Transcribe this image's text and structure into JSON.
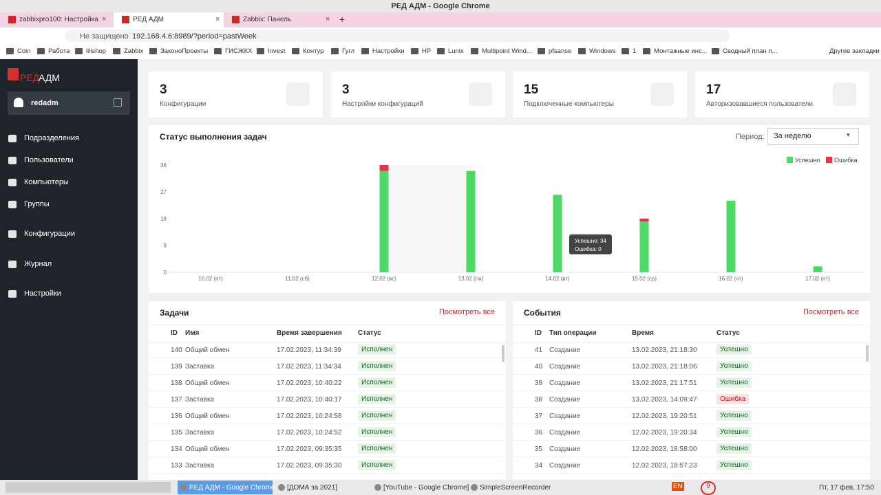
{
  "browser": {
    "window_title": "РЕД АДМ - Google Chrome",
    "tabs": [
      "zabbixpro100: Настройка уз...",
      "РЕД АДМ",
      "Zabbix: Панель"
    ],
    "url_warning": "Не защищено",
    "url": "192.168.4.6:8989/?period=pastWeek",
    "bookmarks": [
      "Coin",
      "Работа",
      "lilishop",
      "Zabbix",
      "ЗаконоПроекты",
      "ГИСЖКХ",
      "Invest",
      "Контур",
      "Гугл",
      "Настройки",
      "HP",
      "Lunix",
      "Multipoint Wind...",
      "pfsanse",
      "Windows",
      "1",
      "Монтажные инс...",
      "Сводный план п..."
    ],
    "other_bookmarks": "Другие закладки"
  },
  "app": {
    "logo_accent": "РЕД",
    "logo_rest": "АДМ",
    "user": "redadm",
    "nav": [
      "Подразделения",
      "Пользователи",
      "Компьютеры",
      "Группы",
      "Конфигурации",
      "Журнал",
      "Настройки"
    ],
    "stats": [
      {
        "value": "3",
        "label": "Конфигурации"
      },
      {
        "value": "3",
        "label": "Настройки конфигураций"
      },
      {
        "value": "15",
        "label": "Подключенные компьютеры"
      },
      {
        "value": "17",
        "label": "Авторизовавшиеся пользователи"
      }
    ]
  },
  "chart_data": {
    "type": "bar",
    "stacked": true,
    "title": "Статус выполнения задач",
    "period_label": "Период:",
    "period_value": "За неделю",
    "categories": [
      "10.02 (пт)",
      "11.02 (сб)",
      "12.02 (вс)",
      "13.02 (пн)",
      "14.02 (вт)",
      "15.02 (ср)",
      "16.02 (чт)",
      "17.02 (пт)"
    ],
    "series": [
      {
        "name": "Успешно",
        "color": "#4cd964",
        "values": [
          0,
          0,
          34,
          34,
          26,
          17,
          24,
          2
        ]
      },
      {
        "name": "Ошибка",
        "color": "#e0364f",
        "values": [
          0,
          0,
          2,
          0,
          0,
          1,
          0,
          0
        ]
      }
    ],
    "ylim": [
      0,
      36
    ],
    "yticks": [
      0,
      9,
      18,
      27,
      36
    ],
    "grid": false,
    "legend": "top-right",
    "tooltip": [
      "Успешно: 34",
      "Ошибка: 0"
    ]
  },
  "tasks": {
    "title": "Задачи",
    "link": "Посмотреть все",
    "columns": [
      "ID",
      "Имя",
      "Время завершения",
      "Статус"
    ],
    "rows": [
      [
        "140",
        "Общий обмен",
        "17.02.2023, 11:34:39",
        "Исполнен"
      ],
      [
        "139",
        "Заставка",
        "17.02.2023, 11:34:34",
        "Исполнен"
      ],
      [
        "138",
        "Общий обмен",
        "17.02.2023, 10:40:22",
        "Исполнен"
      ],
      [
        "137",
        "Заставка",
        "17.02.2023, 10:40:17",
        "Исполнен"
      ],
      [
        "136",
        "Общий обмен",
        "17.02.2023, 10:24:58",
        "Исполнен"
      ],
      [
        "135",
        "Заставка",
        "17.02.2023, 10:24:52",
        "Исполнен"
      ],
      [
        "134",
        "Общий обмен",
        "17.02.2023, 09:35:35",
        "Исполнен"
      ],
      [
        "133",
        "Заставка",
        "17.02.2023, 09:35:30",
        "Исполнен"
      ]
    ]
  },
  "events": {
    "title": "События",
    "link": "Посмотреть все",
    "columns": [
      "ID",
      "Тип операции",
      "Время",
      "Статус"
    ],
    "rows": [
      [
        "41",
        "Создание",
        "13.02.2023, 21:18:30",
        "Успешно"
      ],
      [
        "40",
        "Создание",
        "13.02.2023, 21:18:06",
        "Успешно"
      ],
      [
        "39",
        "Создание",
        "13.02.2023, 21:17:51",
        "Успешно"
      ],
      [
        "38",
        "Создание",
        "13.02.2023, 14:09:47",
        "Ошибка"
      ],
      [
        "37",
        "Создание",
        "12.02.2023, 19:20:51",
        "Успешно"
      ],
      [
        "36",
        "Создание",
        "12.02.2023, 19:20:34",
        "Успешно"
      ],
      [
        "35",
        "Создание",
        "12.02.2023, 18:58:00",
        "Успешно"
      ],
      [
        "34",
        "Создание",
        "12.02.2023, 18:57:23",
        "Успешно"
      ]
    ]
  },
  "taskbar": {
    "items": [
      "РЕД АДМ - Google Chrome",
      "[ДОМА за 2021]",
      "[YouTube - Google Chrome]",
      "SimpleScreenRecorder"
    ],
    "badge": "9",
    "lang": "EN",
    "clock": "Пт, 17 фев, 17:50"
  }
}
